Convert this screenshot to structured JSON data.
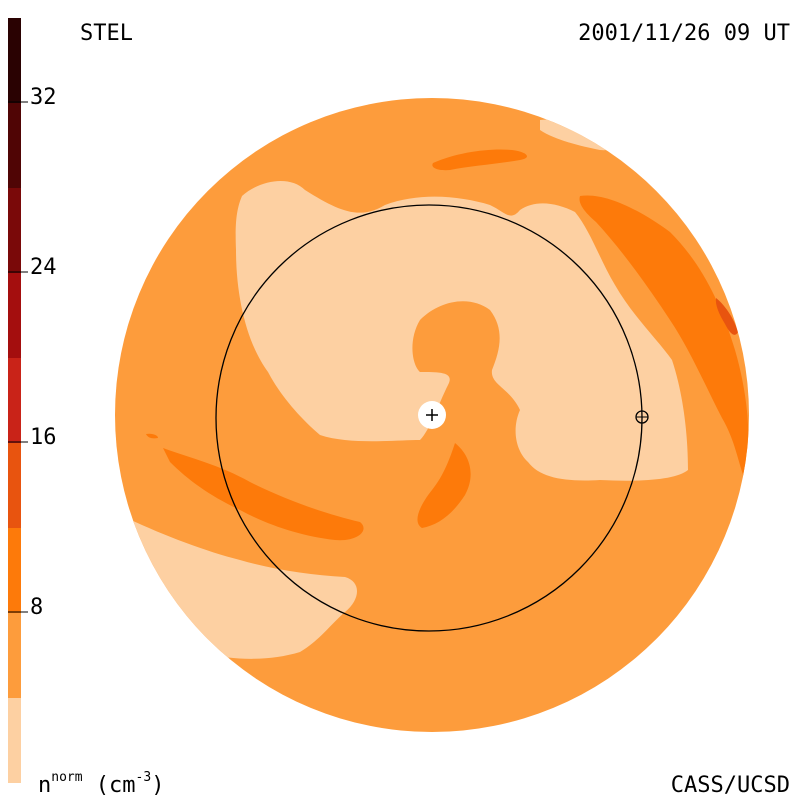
{
  "header": {
    "left_label": "STEL",
    "right_label": "2001/11/26 09 UT"
  },
  "footer": {
    "unit_base": "n",
    "unit_sup": "norm",
    "unit_rest": " (cm",
    "unit_exp": "-3",
    "unit_close": ")",
    "credit": "CASS/UCSD"
  },
  "colorbar": {
    "ticks": [
      "32",
      "24",
      "16",
      "8"
    ],
    "colors": [
      "#fdd0a2",
      "#fd9c3c",
      "#fd7a0a",
      "#e8540f",
      "#c92318",
      "#a40e0e",
      "#7a0909",
      "#500505",
      "#2a0202"
    ],
    "colors_order": "bottom-to-top"
  },
  "map": {
    "background_color": "#fd9c3c",
    "light_color": "#fdd0a2",
    "mid_color": "#fd7a0a",
    "dark_color": "#e8540f",
    "peak_color": "#c92318",
    "sun_marker": "plus-icon",
    "earth_marker": "earth-symbol-icon"
  }
}
